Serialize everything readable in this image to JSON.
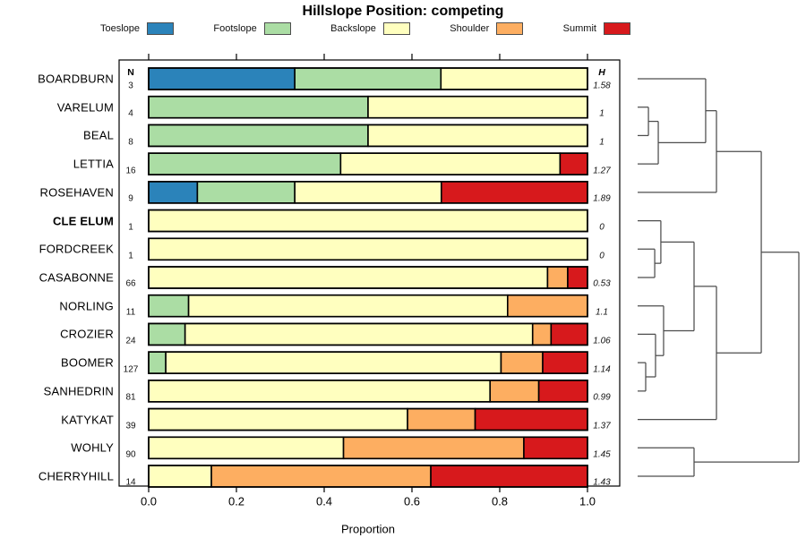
{
  "title": "Hillslope Position: competing",
  "columns": {
    "n_header": "N",
    "h_header": "H"
  },
  "axis": {
    "label": "Proportion",
    "tick_labels": [
      "0.0",
      "0.2",
      "0.4",
      "0.6",
      "0.8",
      "1.0"
    ],
    "tick_values": [
      0,
      0.2,
      0.4,
      0.6,
      0.8,
      1.0
    ]
  },
  "chart_data": {
    "type": "bar",
    "stacked": true,
    "orientation": "horizontal",
    "xlabel": "Proportion",
    "xlim": [
      0,
      1
    ],
    "classes": [
      {
        "label": "Toeslope",
        "color": "#2B83BA"
      },
      {
        "label": "Footslope",
        "color": "#ABDDA4"
      },
      {
        "label": "Backslope",
        "color": "#FFFFBF"
      },
      {
        "label": "Shoulder",
        "color": "#FDAE61"
      },
      {
        "label": "Summit",
        "color": "#D7191C"
      }
    ],
    "rows": [
      {
        "name": "BOARDBURN",
        "bold": false,
        "n": "3",
        "h": "1.58",
        "values": [
          0.333,
          0.333,
          0.334,
          0,
          0
        ]
      },
      {
        "name": "VARELUM",
        "bold": false,
        "n": "4",
        "h": "1",
        "values": [
          0,
          0.5,
          0.5,
          0,
          0
        ]
      },
      {
        "name": "BEAL",
        "bold": false,
        "n": "8",
        "h": "1",
        "values": [
          0,
          0.5,
          0.5,
          0,
          0
        ]
      },
      {
        "name": "LETTIA",
        "bold": false,
        "n": "16",
        "h": "1.27",
        "values": [
          0,
          0.4375,
          0.5,
          0,
          0.0625
        ]
      },
      {
        "name": "ROSEHAVEN",
        "bold": false,
        "n": "9",
        "h": "1.89",
        "values": [
          0.111,
          0.222,
          0.334,
          0,
          0.333
        ]
      },
      {
        "name": "CLE ELUM",
        "bold": true,
        "n": "1",
        "h": "0",
        "values": [
          0,
          0,
          1,
          0,
          0
        ]
      },
      {
        "name": "FORDCREEK",
        "bold": false,
        "n": "1",
        "h": "0",
        "values": [
          0,
          0,
          1,
          0,
          0
        ]
      },
      {
        "name": "CASABONNE",
        "bold": false,
        "n": "66",
        "h": "0.53",
        "values": [
          0,
          0,
          0.909,
          0.046,
          0.045
        ]
      },
      {
        "name": "NORLING",
        "bold": false,
        "n": "11",
        "h": "1.1",
        "values": [
          0,
          0.091,
          0.727,
          0.182,
          0
        ]
      },
      {
        "name": "CROZIER",
        "bold": false,
        "n": "24",
        "h": "1.06",
        "values": [
          0,
          0.083,
          0.792,
          0.042,
          0.083
        ]
      },
      {
        "name": "BOOMER",
        "bold": false,
        "n": "127",
        "h": "1.14",
        "values": [
          0,
          0.039,
          0.764,
          0.095,
          0.102
        ]
      },
      {
        "name": "SANHEDRIN",
        "bold": false,
        "n": "81",
        "h": "0.99",
        "values": [
          0,
          0,
          0.778,
          0.111,
          0.111
        ]
      },
      {
        "name": "KATYKAT",
        "bold": false,
        "n": "39",
        "h": "1.37",
        "values": [
          0,
          0,
          0.59,
          0.154,
          0.256
        ]
      },
      {
        "name": "WOHLY",
        "bold": false,
        "n": "90",
        "h": "1.45",
        "values": [
          0,
          0,
          0.444,
          0.411,
          0.145
        ]
      },
      {
        "name": "CHERRYHILL",
        "bold": false,
        "n": "14",
        "h": "1.43",
        "values": [
          0,
          0,
          0.143,
          0.5,
          0.357
        ]
      }
    ],
    "dendrogram": {
      "height_scale": "relative_0_to_1",
      "tree": {
        "h": 1.0,
        "children": [
          {
            "h": 0.767,
            "children": [
              {
                "h": 0.489,
                "children": [
                  {
                    "h": 0.422,
                    "children": [
                      {
                        "leaf": "BOARDBURN"
                      },
                      {
                        "h": 0.128,
                        "children": [
                          {
                            "h": 0.067,
                            "children": [
                              {
                                "leaf": "VARELUM"
                              },
                              {
                                "leaf": "BEAL"
                              }
                            ]
                          },
                          {
                            "leaf": "LETTIA"
                          }
                        ]
                      }
                    ]
                  },
                  {
                    "leaf": "ROSEHAVEN"
                  }
                ]
              },
              {
                "h": 0.489,
                "children": [
                  {
                    "h": 0.35,
                    "children": [
                      {
                        "h": 0.144,
                        "children": [
                          {
                            "leaf": "CLE ELUM"
                          },
                          {
                            "h": 0.106,
                            "children": [
                              {
                                "leaf": "FORDCREEK"
                              },
                              {
                                "leaf": "CASABONNE"
                              }
                            ]
                          }
                        ]
                      },
                      {
                        "h": 0.161,
                        "children": [
                          {
                            "leaf": "NORLING"
                          },
                          {
                            "h": 0.111,
                            "children": [
                              {
                                "leaf": "CROZIER"
                              },
                              {
                                "h": 0.05,
                                "children": [
                                  {
                                    "leaf": "BOOMER"
                                  },
                                  {
                                    "leaf": "SANHEDRIN"
                                  }
                                ]
                              }
                            ]
                          }
                        ]
                      }
                    ]
                  },
                  {
                    "leaf": "KATYKAT"
                  }
                ]
              }
            ]
          },
          {
            "h": 0.35,
            "children": [
              {
                "leaf": "WOHLY"
              },
              {
                "leaf": "CHERRYHILL"
              }
            ]
          }
        ]
      }
    }
  }
}
